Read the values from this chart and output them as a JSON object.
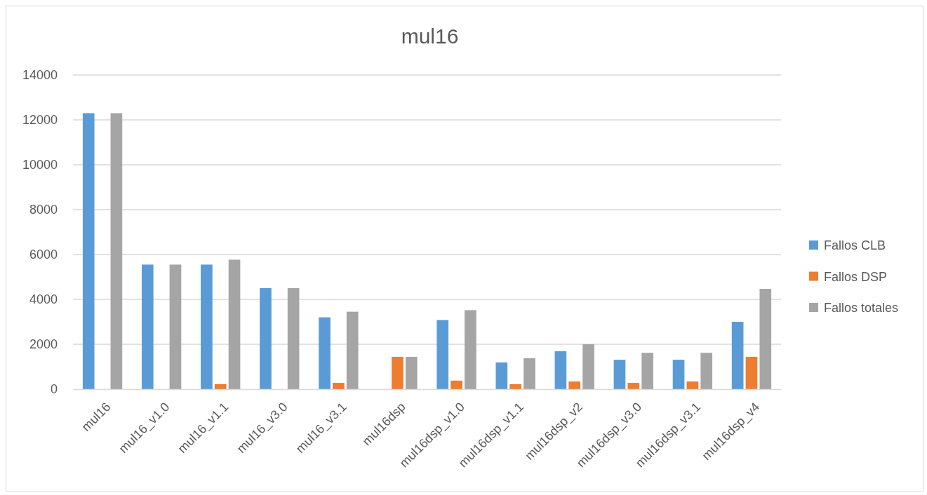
{
  "chart_data": {
    "type": "bar",
    "title": "mul16",
    "categories": [
      "mul16",
      "mul16_v1.0",
      "mul16_v1.1",
      "mul16_v3.0",
      "mul16_v3.1",
      "mul16dsp",
      "mul16dsp_v1.0",
      "mul16dsp_v1.1",
      "mul16dsp_v2",
      "mul16dsp_v3.0",
      "mul16dsp_v3.1",
      "mul16dsp_v4"
    ],
    "series": [
      {
        "name": "Fallos CLB",
        "color": "#5b9bd5",
        "values": [
          12300,
          5550,
          5550,
          4500,
          3200,
          0,
          3080,
          1190,
          1690,
          1310,
          1310,
          3000
        ]
      },
      {
        "name": "Fallos DSP",
        "color": "#ed7d31",
        "values": [
          0,
          0,
          220,
          0,
          280,
          1440,
          380,
          220,
          340,
          280,
          340,
          1440
        ]
      },
      {
        "name": "Fallos totales",
        "color": "#a5a5a5",
        "values": [
          12300,
          5550,
          5770,
          4500,
          3450,
          1440,
          3520,
          1380,
          2000,
          1620,
          1620,
          4470
        ]
      }
    ],
    "ylim": [
      0,
      14000
    ],
    "yticks": [
      0,
      2000,
      4000,
      6000,
      8000,
      10000,
      12000,
      14000
    ],
    "grid": "y",
    "legend": "right"
  }
}
